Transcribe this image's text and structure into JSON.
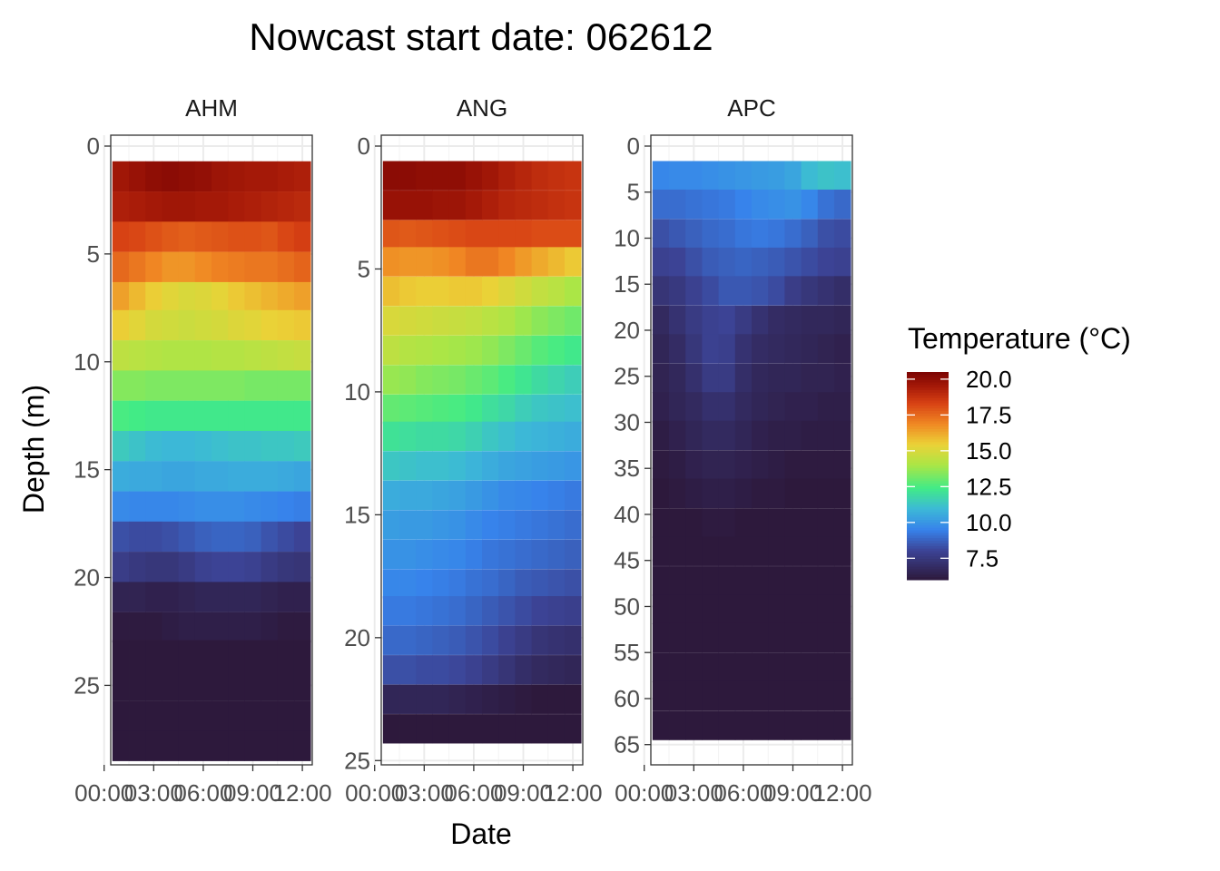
{
  "chart_data": {
    "type": "heatmap",
    "title": "Nowcast start date: 062612",
    "xlabel": "Date",
    "ylabel": "Depth (m)",
    "x_tick_labels": [
      "00:00",
      "03:00",
      "06:00",
      "09:00",
      "12:00"
    ],
    "y_reversed": true,
    "grid": true,
    "legend": {
      "title": "Temperature (°C)",
      "position": "right",
      "colorscale": "turbo",
      "limits": [
        6.0,
        20.5
      ],
      "ticks": [
        20.0,
        17.5,
        15.0,
        12.5,
        10.0,
        7.5
      ],
      "tick_labels": [
        "20.0",
        "17.5",
        "15.0",
        "12.5",
        "10.0",
        "7.5"
      ]
    },
    "facets": [
      {
        "name": "AHM",
        "ylim": [
          0,
          28.6
        ],
        "y_ticks": [
          0,
          5,
          10,
          15,
          20,
          25
        ],
        "y_tick_labels": [
          "0",
          "5",
          "10",
          "15",
          "20",
          "25"
        ],
        "x_hours": [
          1,
          2,
          3,
          4,
          5,
          6,
          7,
          8,
          9,
          10,
          11,
          12
        ],
        "depths": [
          1.4,
          2.8,
          4.2,
          5.6,
          7.0,
          8.3,
          9.7,
          11.1,
          12.5,
          13.9,
          15.3,
          16.7,
          18.1,
          19.5,
          20.9,
          22.3,
          23.6,
          25.0,
          26.4,
          27.8
        ],
        "cell_height": 1.39,
        "values": [
          [
            19.6,
            19.8,
            20.0,
            20.1,
            20.0,
            19.9,
            19.7,
            19.6,
            19.5,
            19.5,
            19.4,
            19.3
          ],
          [
            19.3,
            19.4,
            19.5,
            19.6,
            19.6,
            19.5,
            19.5,
            19.4,
            19.3,
            19.2,
            19.1,
            19.0
          ],
          [
            18.3,
            18.2,
            18.0,
            17.8,
            17.7,
            17.8,
            17.9,
            18.0,
            18.0,
            17.9,
            18.2,
            18.4
          ],
          [
            17.5,
            17.2,
            16.9,
            16.6,
            16.6,
            16.8,
            17.0,
            17.1,
            17.2,
            17.2,
            17.4,
            17.6
          ],
          [
            16.4,
            15.9,
            15.5,
            15.2,
            15.0,
            15.1,
            15.3,
            15.6,
            15.8,
            16.0,
            16.2,
            16.4
          ],
          [
            15.5,
            15.2,
            14.9,
            14.8,
            14.7,
            14.8,
            14.9,
            15.1,
            15.2,
            15.4,
            15.5,
            15.6
          ],
          [
            14.4,
            14.3,
            14.2,
            14.1,
            14.1,
            14.1,
            14.2,
            14.2,
            14.3,
            14.4,
            14.5,
            14.6
          ],
          [
            13.4,
            13.4,
            13.3,
            13.3,
            13.3,
            13.3,
            13.3,
            13.3,
            13.2,
            13.2,
            13.2,
            13.2
          ],
          [
            12.5,
            12.4,
            12.3,
            12.3,
            12.3,
            12.3,
            12.3,
            12.3,
            12.3,
            12.3,
            12.3,
            12.3
          ],
          [
            11.4,
            11.2,
            11.0,
            10.9,
            10.9,
            11.0,
            11.1,
            11.2,
            11.2,
            11.3,
            11.3,
            11.4
          ],
          [
            10.6,
            10.5,
            10.5,
            10.4,
            10.4,
            10.5,
            10.5,
            10.6,
            10.6,
            10.6,
            10.5,
            10.4
          ],
          [
            9.7,
            9.6,
            9.6,
            9.6,
            9.7,
            9.8,
            9.8,
            9.8,
            9.7,
            9.6,
            9.5,
            9.4
          ],
          [
            8.3,
            8.2,
            8.2,
            8.3,
            8.5,
            8.7,
            8.8,
            8.8,
            8.7,
            8.4,
            8.2,
            8.0
          ],
          [
            7.7,
            7.5,
            7.4,
            7.4,
            7.6,
            7.9,
            8.0,
            8.0,
            7.9,
            7.6,
            7.4,
            7.3
          ],
          [
            6.5,
            6.5,
            6.4,
            6.4,
            6.5,
            6.6,
            6.6,
            6.6,
            6.6,
            6.5,
            6.4,
            6.4
          ],
          [
            6.1,
            6.1,
            6.1,
            6.2,
            6.3,
            6.3,
            6.3,
            6.3,
            6.3,
            6.2,
            6.1,
            6.1
          ],
          [
            5.7,
            5.7,
            5.7,
            5.8,
            5.8,
            5.8,
            5.8,
            5.8,
            5.8,
            5.7,
            5.7,
            5.7
          ],
          [
            5.3,
            5.3,
            5.3,
            5.3,
            5.3,
            5.3,
            5.3,
            5.3,
            5.3,
            5.4,
            5.4,
            5.4
          ],
          [
            5.2,
            5.2,
            5.2,
            5.2,
            5.2,
            5.2,
            5.2,
            5.2,
            5.2,
            5.2,
            5.2,
            5.2
          ],
          [
            5.1,
            5.1,
            5.1,
            5.1,
            5.1,
            5.1,
            5.1,
            5.1,
            5.1,
            5.1,
            5.1,
            5.1
          ]
        ]
      },
      {
        "name": "ANG",
        "ylim": [
          0,
          25.1
        ],
        "y_ticks": [
          0,
          5,
          10,
          15,
          20,
          25
        ],
        "y_tick_labels": [
          "0",
          "5",
          "10",
          "15",
          "20",
          "25"
        ],
        "x_hours": [
          1,
          2,
          3,
          4,
          5,
          6,
          7,
          8,
          9,
          10,
          11,
          12
        ],
        "depths": [
          1.2,
          2.4,
          3.6,
          4.7,
          5.9,
          7.1,
          8.3,
          9.5,
          10.7,
          11.8,
          13.0,
          14.2,
          15.4,
          16.6,
          17.8,
          18.9,
          20.1,
          21.3,
          22.5,
          23.7
        ],
        "cell_height": 1.18,
        "values": [
          [
            20.1,
            20.1,
            20.0,
            20.0,
            20.0,
            19.8,
            19.6,
            19.3,
            19.1,
            18.9,
            18.8,
            18.7
          ],
          [
            19.8,
            19.8,
            19.8,
            19.7,
            19.7,
            19.5,
            19.3,
            19.1,
            19.0,
            18.9,
            18.8,
            18.7
          ],
          [
            17.9,
            17.8,
            17.9,
            18.0,
            18.1,
            18.2,
            18.2,
            18.2,
            18.2,
            18.1,
            18.1,
            18.1
          ],
          [
            16.7,
            16.6,
            16.6,
            16.7,
            16.9,
            17.2,
            17.2,
            16.9,
            16.5,
            16.2,
            15.9,
            15.6
          ],
          [
            15.8,
            15.6,
            15.5,
            15.5,
            15.6,
            15.6,
            15.4,
            15.1,
            14.8,
            14.5,
            14.3,
            14.0
          ],
          [
            15.0,
            14.9,
            14.8,
            14.7,
            14.6,
            14.5,
            14.3,
            14.1,
            13.8,
            13.5,
            13.3,
            13.1
          ],
          [
            14.4,
            14.2,
            14.1,
            14.0,
            13.9,
            13.8,
            13.6,
            13.3,
            13.0,
            12.7,
            12.5,
            12.3
          ],
          [
            13.7,
            13.6,
            13.4,
            13.3,
            13.2,
            13.0,
            12.8,
            12.5,
            12.2,
            11.9,
            11.7,
            11.5
          ],
          [
            12.9,
            12.8,
            12.7,
            12.6,
            12.5,
            12.3,
            12.0,
            11.8,
            11.5,
            11.3,
            11.2,
            11.1
          ],
          [
            12.1,
            12.0,
            11.9,
            11.9,
            11.8,
            11.6,
            11.3,
            11.1,
            10.9,
            10.8,
            10.7,
            10.6
          ],
          [
            11.3,
            11.2,
            11.1,
            11.1,
            11.0,
            10.8,
            10.6,
            10.4,
            10.3,
            10.2,
            10.1,
            10.0
          ],
          [
            10.6,
            10.5,
            10.5,
            10.4,
            10.3,
            10.1,
            9.9,
            9.7,
            9.6,
            9.5,
            9.4,
            9.3
          ],
          [
            10.2,
            10.1,
            10.1,
            10.0,
            9.9,
            9.7,
            9.5,
            9.4,
            9.3,
            9.2,
            9.1,
            9.0
          ],
          [
            9.9,
            9.9,
            9.8,
            9.7,
            9.6,
            9.4,
            9.2,
            9.1,
            9.0,
            8.9,
            8.8,
            8.7
          ],
          [
            9.6,
            9.6,
            9.5,
            9.4,
            9.3,
            9.1,
            9.0,
            8.8,
            8.6,
            8.5,
            8.4,
            8.3
          ],
          [
            9.3,
            9.3,
            9.2,
            9.1,
            9.0,
            8.8,
            8.6,
            8.4,
            8.2,
            8.0,
            7.9,
            7.8
          ],
          [
            8.9,
            8.9,
            8.8,
            8.7,
            8.6,
            8.4,
            8.2,
            7.9,
            7.6,
            7.3,
            7.2,
            7.1
          ],
          [
            8.3,
            8.3,
            8.2,
            8.2,
            8.1,
            7.9,
            7.6,
            7.3,
            7.0,
            6.8,
            6.7,
            6.6
          ],
          [
            6.6,
            6.6,
            6.6,
            6.6,
            6.5,
            6.4,
            6.3,
            6.2,
            6.1,
            6.0,
            5.9,
            5.8
          ],
          [
            5.9,
            5.9,
            5.9,
            5.9,
            5.8,
            5.7,
            5.6,
            5.5,
            5.4,
            5.3,
            5.2,
            5.2
          ]
        ]
      },
      {
        "name": "APC",
        "ylim": [
          0,
          67.0
        ],
        "y_ticks": [
          0,
          5,
          10,
          15,
          20,
          25,
          30,
          35,
          40,
          45,
          50,
          55,
          60,
          65
        ],
        "y_tick_labels": [
          "0",
          "5",
          "10",
          "15",
          "20",
          "25",
          "30",
          "35",
          "40",
          "45",
          "50",
          "55",
          "60",
          "65"
        ],
        "x_hours": [
          1,
          2,
          3,
          4,
          5,
          6,
          7,
          8,
          9,
          10,
          11,
          12
        ],
        "depths": [
          3.2,
          6.3,
          9.5,
          12.6,
          15.7,
          18.9,
          22.0,
          25.2,
          28.3,
          31.4,
          34.6,
          37.7,
          40.9,
          44.0,
          47.2,
          50.3,
          53.4,
          56.6,
          59.7,
          62.9
        ],
        "cell_height": 3.15,
        "values": [
          [
            9.6,
            9.7,
            9.7,
            9.8,
            9.9,
            10.0,
            10.1,
            10.2,
            10.4,
            11.0,
            11.2,
            11.1
          ],
          [
            9.0,
            9.0,
            9.1,
            9.2,
            9.3,
            9.5,
            9.7,
            9.8,
            9.9,
            9.6,
            9.1,
            8.9
          ],
          [
            8.3,
            8.5,
            8.7,
            8.9,
            9.0,
            9.2,
            9.3,
            9.2,
            9.0,
            8.7,
            8.3,
            8.2
          ],
          [
            7.9,
            8.0,
            8.3,
            8.6,
            8.7,
            8.8,
            8.7,
            8.6,
            8.4,
            8.2,
            8.0,
            7.9
          ],
          [
            7.3,
            7.5,
            7.9,
            8.2,
            8.5,
            8.5,
            8.4,
            8.2,
            7.7,
            7.4,
            7.2,
            7.0
          ],
          [
            6.8,
            7.2,
            7.6,
            7.9,
            8.0,
            7.6,
            7.2,
            6.9,
            6.8,
            6.7,
            6.7,
            6.6
          ],
          [
            6.6,
            6.9,
            7.4,
            7.9,
            7.8,
            7.2,
            6.9,
            6.8,
            6.7,
            6.6,
            6.5,
            6.4
          ],
          [
            6.5,
            6.7,
            7.1,
            7.6,
            7.6,
            7.0,
            6.7,
            6.6,
            6.6,
            6.5,
            6.5,
            6.4
          ],
          [
            6.4,
            6.6,
            6.8,
            7.1,
            7.1,
            6.8,
            6.6,
            6.5,
            6.4,
            6.4,
            6.3,
            6.3
          ],
          [
            6.2,
            6.4,
            6.6,
            6.8,
            6.8,
            6.6,
            6.4,
            6.3,
            6.3,
            6.2,
            6.2,
            6.2
          ],
          [
            6.1,
            6.2,
            6.4,
            6.5,
            6.5,
            6.4,
            6.3,
            6.2,
            6.1,
            6.1,
            6.1,
            6.1
          ],
          [
            6.0,
            6.1,
            6.2,
            6.3,
            6.3,
            6.2,
            6.1,
            6.1,
            6.0,
            6.0,
            6.0,
            6.0
          ],
          [
            5.9,
            5.9,
            6.0,
            6.1,
            6.1,
            6.0,
            5.9,
            5.9,
            5.9,
            5.9,
            5.9,
            5.9
          ],
          [
            5.7,
            5.7,
            5.8,
            5.9,
            5.9,
            5.9,
            5.8,
            5.7,
            5.7,
            5.7,
            5.7,
            5.7
          ],
          [
            5.6,
            5.6,
            5.6,
            5.7,
            5.7,
            5.7,
            5.6,
            5.6,
            5.5,
            5.5,
            5.5,
            5.5
          ],
          [
            5.5,
            5.5,
            5.5,
            5.5,
            5.5,
            5.5,
            5.5,
            5.5,
            5.4,
            5.4,
            5.4,
            5.4
          ],
          [
            5.4,
            5.4,
            5.4,
            5.4,
            5.4,
            5.4,
            5.4,
            5.4,
            5.3,
            5.3,
            5.3,
            5.3
          ],
          [
            5.3,
            5.3,
            5.3,
            5.3,
            5.3,
            5.3,
            5.3,
            5.3,
            5.2,
            5.2,
            5.2,
            5.2
          ],
          [
            5.2,
            5.2,
            5.2,
            5.2,
            5.2,
            5.2,
            5.2,
            5.2,
            5.2,
            5.2,
            5.2,
            5.2
          ],
          [
            5.2,
            5.2,
            5.2,
            5.2,
            5.2,
            5.2,
            5.2,
            5.2,
            5.1,
            5.1,
            5.1,
            5.1
          ]
        ]
      }
    ]
  }
}
